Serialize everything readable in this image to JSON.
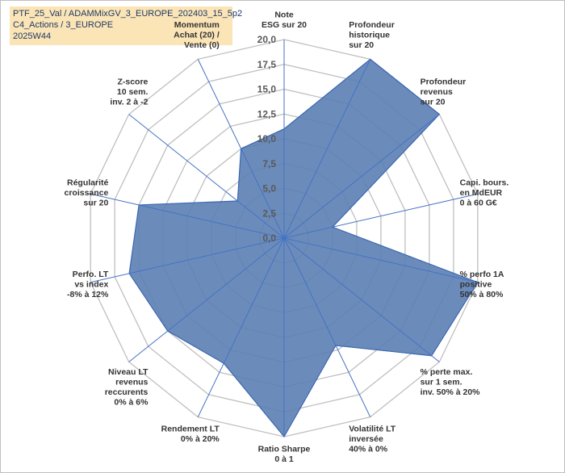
{
  "header": {
    "line1": "PTF_25_Val / ADAMMixGV_3_EUROPE_202403_15_5p2",
    "line2": "C4_Actions / 3_EUROPE",
    "line3": "2025W44"
  },
  "colors": {
    "fill": "#5b7fb4",
    "stroke": "#3a66b0",
    "grid": "#bfbfbf",
    "spoke": "#4472c4",
    "title_bg": "#fbe5b6",
    "label": "#333333"
  },
  "chart_data": {
    "type": "radar",
    "ylim": [
      0,
      20
    ],
    "ticks": [
      "0,0",
      "2,5",
      "5,0",
      "7,5",
      "10,0",
      "12,5",
      "15,0",
      "17,5",
      "20,0"
    ],
    "categories": [
      "Note\nESG sur 20",
      "Profondeur\nhistorique\nsur 20",
      "Profondeur\nrevenus\nsur 20",
      "Capi. bours.\nen MdEUR\n0 à 60 G€",
      "% perfo 1A\npositive\n50% à 80%",
      "% perte max.\nsur 1 sem.\ninv. 50% à 20%",
      "Volatilité LT\ninversée\n40% à 0%",
      "Ratio Sharpe\n0 à 1",
      "Rendement LT\n0% à 20%",
      "Niveau LT\nrevenus\nreccurents\n0% à 6%",
      "Perfo. LT\nvs index\n-8% à 12%",
      "Régularité\ncroissance\nsur 20",
      "Z-score\n10 sem.\ninv. 2 à -2",
      "Momentum\nAchat (20) /\nVente (0)"
    ],
    "series": [
      {
        "values": [
          11,
          20,
          20,
          5,
          20,
          19,
          12,
          20,
          14,
          15,
          16,
          15,
          6,
          10
        ]
      }
    ]
  }
}
